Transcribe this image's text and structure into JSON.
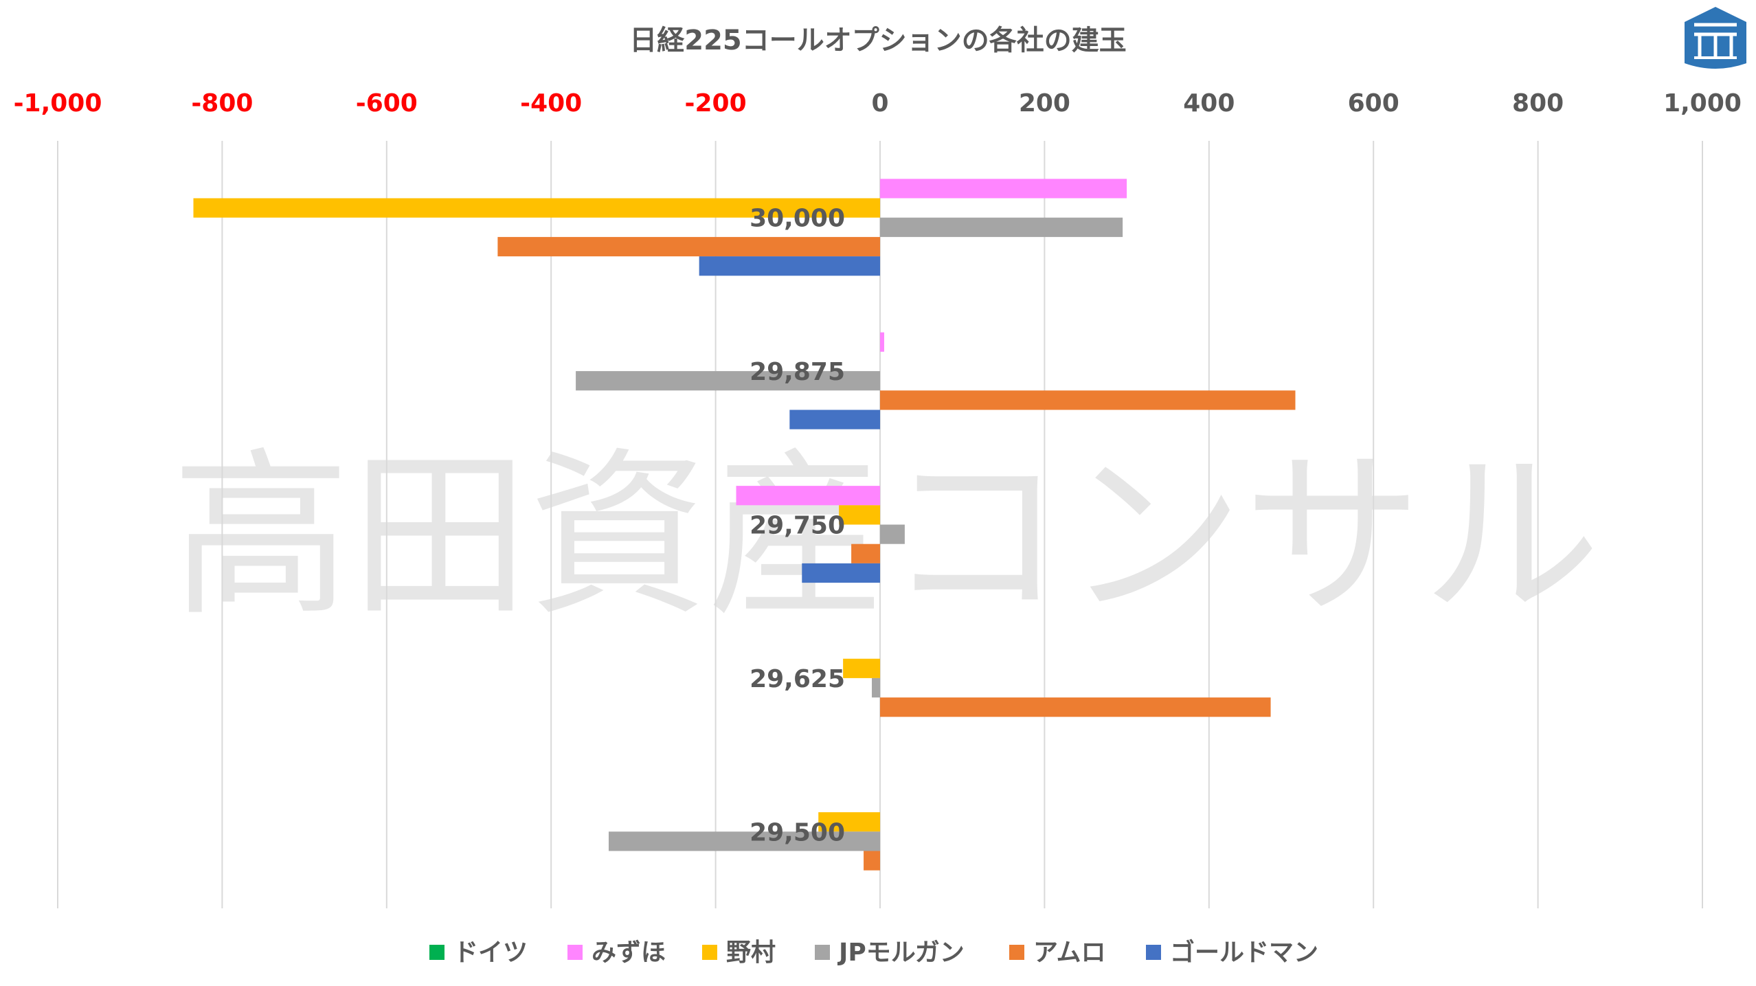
{
  "chart_data": {
    "type": "bar",
    "orientation": "horizontal",
    "title": "日経225コールオプションの各社の建玉",
    "watermark": "高田資産コンサル",
    "xlim": [
      -1000,
      1000
    ],
    "x_ticks": [
      -1000,
      -800,
      -600,
      -400,
      -200,
      0,
      200,
      400,
      600,
      800,
      1000
    ],
    "x_tick_labels": [
      "-1,000",
      "-800",
      "-600",
      "-400",
      "-200",
      "0",
      "200",
      "400",
      "600",
      "800",
      "1,000"
    ],
    "negative_tick_color": "#ff0000",
    "positive_tick_color": "#595959",
    "xaxis_position": "top",
    "grid": "vertical",
    "legend_position": "bottom",
    "categories": [
      "30,000",
      "29,875",
      "29,750",
      "29,625",
      "29,500"
    ],
    "series": [
      {
        "name": "ドイツ",
        "color": "#00b050",
        "values": [
          0,
          0,
          0,
          0,
          0
        ]
      },
      {
        "name": "みずほ",
        "color": "#ff85ff",
        "values": [
          300,
          5,
          -175,
          0,
          0
        ]
      },
      {
        "name": "野村",
        "color": "#ffc000",
        "values": [
          -835,
          0,
          -50,
          -45,
          -75
        ]
      },
      {
        "name": "JPモルガン",
        "color": "#a5a5a5",
        "values": [
          295,
          -370,
          30,
          -10,
          -330
        ]
      },
      {
        "name": "アムロ",
        "color": "#ed7d31",
        "values": [
          -465,
          505,
          -35,
          475,
          -20
        ]
      },
      {
        "name": "ゴールドマン",
        "color": "#4472c4",
        "values": [
          -220,
          -110,
          -95,
          0,
          0
        ]
      }
    ]
  },
  "logo": {
    "name": "logo-icon",
    "color": "#2e75b6"
  }
}
